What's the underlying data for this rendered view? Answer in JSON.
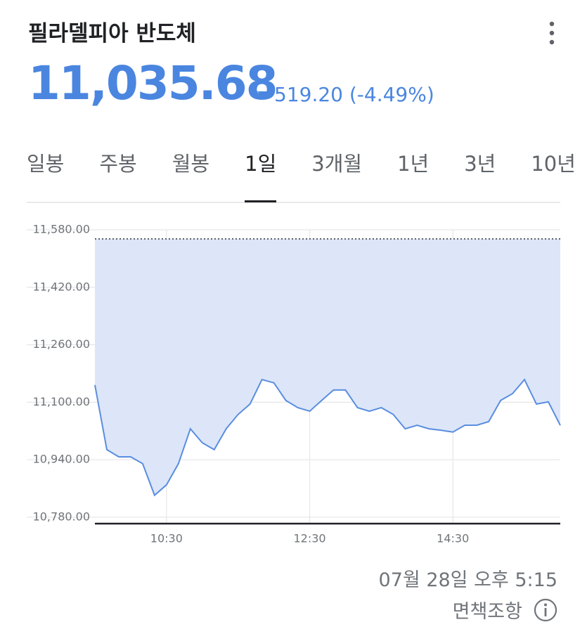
{
  "header": {
    "title": "필라델피아 반도체",
    "price": "11,035.68",
    "change": "519.20 (-4.49%)"
  },
  "tabs": [
    "일봉",
    "주봉",
    "월봉",
    "1일",
    "3개월",
    "1년",
    "3년",
    "10년"
  ],
  "selected_tab": 3,
  "footer": {
    "timestamp": "07월 28일 오후 5:15",
    "disclaimer": "면책조항"
  },
  "chart_data": {
    "type": "area",
    "x": [
      "09:30",
      "09:40",
      "09:50",
      "10:00",
      "10:10",
      "10:20",
      "10:30",
      "10:40",
      "10:50",
      "11:00",
      "11:10",
      "11:20",
      "11:30",
      "11:40",
      "11:50",
      "12:00",
      "12:10",
      "12:20",
      "12:30",
      "12:40",
      "12:50",
      "13:00",
      "13:10",
      "13:20",
      "13:30",
      "13:40",
      "13:50",
      "14:00",
      "14:10",
      "14:20",
      "14:30",
      "14:40",
      "14:50",
      "15:00",
      "15:10",
      "15:20",
      "15:30",
      "15:40",
      "15:50",
      "16:00"
    ],
    "values": [
      11148,
      10968,
      10948,
      10948,
      10929,
      10841,
      10870,
      10929,
      11026,
      10987,
      10968,
      11026,
      11066,
      11095,
      11163,
      11154,
      11105,
      11085,
      11075,
      11105,
      11134,
      11134,
      11085,
      11075,
      11085,
      11066,
      11026,
      11036,
      11026,
      11022,
      11017,
      11036,
      11036,
      11046,
      11105,
      11124,
      11163,
      11095,
      11101,
      11035.68
    ],
    "baseline": 11554.88,
    "color": "#5a8de0",
    "fill": "#dce6f8",
    "xlim": [
      "09:30",
      "16:00"
    ],
    "xticks": [
      "10:30",
      "12:30",
      "14:30"
    ],
    "ylim": [
      10762,
      11580
    ],
    "yticks": [
      {
        "value": 10780,
        "label": "10,780.00"
      },
      {
        "value": 10940,
        "label": "10,940.00"
      },
      {
        "value": 11100,
        "label": "11,100.00"
      },
      {
        "value": 11260,
        "label": "11,260.00"
      },
      {
        "value": 11420,
        "label": "11,420.00"
      },
      {
        "value": 11580,
        "label": "11,580.00"
      }
    ],
    "grid": true
  }
}
